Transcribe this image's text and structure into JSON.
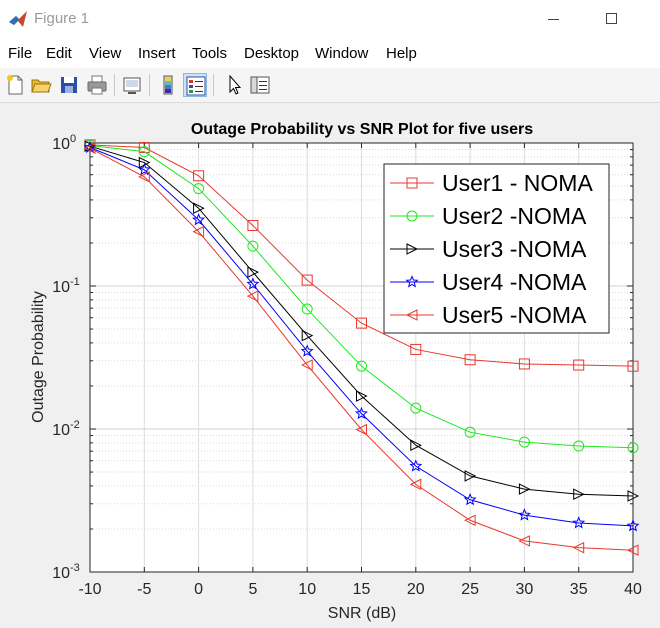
{
  "window": {
    "title": "Figure 1",
    "app_icon": "matlab-logo-icon",
    "minimize_icon": "minimize-icon",
    "maximize_icon": "maximize-icon"
  },
  "menu": [
    "File",
    "Edit",
    "View",
    "Insert",
    "Tools",
    "Desktop",
    "Window",
    "Help"
  ],
  "toolbar": {
    "icons": [
      "new-figure-icon",
      "open-file-icon",
      "save-icon",
      "print-icon",
      "link-plot-icon",
      "insert-colorbar-icon",
      "insert-legend-icon",
      "pointer-icon",
      "property-inspector-icon"
    ],
    "active": "insert-legend-icon"
  },
  "chart_data": {
    "type": "line",
    "title": "Outage Probability vs SNR Plot for five users",
    "xlabel": "SNR (dB)",
    "ylabel": "Outage Probability",
    "x": [
      -10,
      -5,
      0,
      5,
      10,
      15,
      20,
      25,
      30,
      35,
      40
    ],
    "xlim": [
      -10,
      40
    ],
    "xticks": [
      -10,
      -5,
      0,
      5,
      10,
      15,
      20,
      25,
      30,
      35,
      40
    ],
    "yscale": "log",
    "ylim": [
      0.001,
      1
    ],
    "yticks": [
      {
        "value": 0.001,
        "base": "10",
        "exp": "-3"
      },
      {
        "value": 0.01,
        "base": "10",
        "exp": "-2"
      },
      {
        "value": 0.1,
        "base": "10",
        "exp": "-1"
      },
      {
        "value": 1,
        "base": "10",
        "exp": "0"
      }
    ],
    "grid": true,
    "legend_position": "top-right",
    "series": [
      {
        "name": "User1 - NOMA",
        "color": "#e8382f",
        "marker": "square",
        "values": [
          0.97,
          0.93,
          0.59,
          0.265,
          0.11,
          0.055,
          0.036,
          0.0305,
          0.0285,
          0.028,
          0.0275
        ]
      },
      {
        "name": "User2 -NOMA",
        "color": "#1ee81e",
        "marker": "circle",
        "values": [
          0.96,
          0.87,
          0.48,
          0.19,
          0.069,
          0.0275,
          0.014,
          0.0095,
          0.0081,
          0.0076,
          0.0074
        ]
      },
      {
        "name": "User3 -NOMA",
        "color": "#000000",
        "marker": "triangle-right",
        "values": [
          0.95,
          0.73,
          0.35,
          0.125,
          0.045,
          0.017,
          0.0077,
          0.0047,
          0.0038,
          0.0035,
          0.0034
        ]
      },
      {
        "name": "User4 -NOMA",
        "color": "#0000ff",
        "marker": "pentagram",
        "values": [
          0.93,
          0.65,
          0.29,
          0.103,
          0.035,
          0.0128,
          0.0055,
          0.0032,
          0.0025,
          0.0022,
          0.0021
        ]
      },
      {
        "name": "User5 -NOMA",
        "color": "#e8382f",
        "marker": "triangle-left",
        "values": [
          0.92,
          0.58,
          0.24,
          0.085,
          0.028,
          0.0099,
          0.0041,
          0.0023,
          0.00165,
          0.00148,
          0.00142
        ]
      }
    ]
  }
}
